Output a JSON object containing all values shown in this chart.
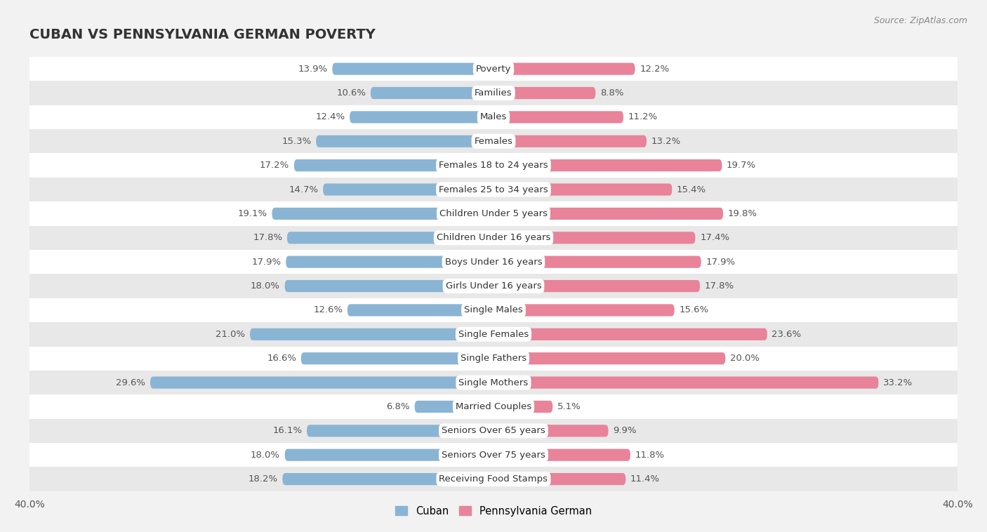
{
  "title": "CUBAN VS PENNSYLVANIA GERMAN POVERTY",
  "source": "Source: ZipAtlas.com",
  "categories": [
    "Poverty",
    "Families",
    "Males",
    "Females",
    "Females 18 to 24 years",
    "Females 25 to 34 years",
    "Children Under 5 years",
    "Children Under 16 years",
    "Boys Under 16 years",
    "Girls Under 16 years",
    "Single Males",
    "Single Females",
    "Single Fathers",
    "Single Mothers",
    "Married Couples",
    "Seniors Over 65 years",
    "Seniors Over 75 years",
    "Receiving Food Stamps"
  ],
  "cuban": [
    13.9,
    10.6,
    12.4,
    15.3,
    17.2,
    14.7,
    19.1,
    17.8,
    17.9,
    18.0,
    12.6,
    21.0,
    16.6,
    29.6,
    6.8,
    16.1,
    18.0,
    18.2
  ],
  "pa_german": [
    12.2,
    8.8,
    11.2,
    13.2,
    19.7,
    15.4,
    19.8,
    17.4,
    17.9,
    17.8,
    15.6,
    23.6,
    20.0,
    33.2,
    5.1,
    9.9,
    11.8,
    11.4
  ],
  "cuban_color": "#8ab4d4",
  "pa_german_color": "#e8839a",
  "background_color": "#f2f2f2",
  "row_bg_even": "#ffffff",
  "row_bg_odd": "#e8e8e8",
  "axis_max": 40.0,
  "bar_height": 0.5,
  "label_fontsize": 9.5,
  "value_fontsize": 9.5,
  "title_fontsize": 14,
  "source_fontsize": 9,
  "label_pill_color": "#ffffff",
  "label_text_color": "#333333",
  "value_text_color": "#555555"
}
